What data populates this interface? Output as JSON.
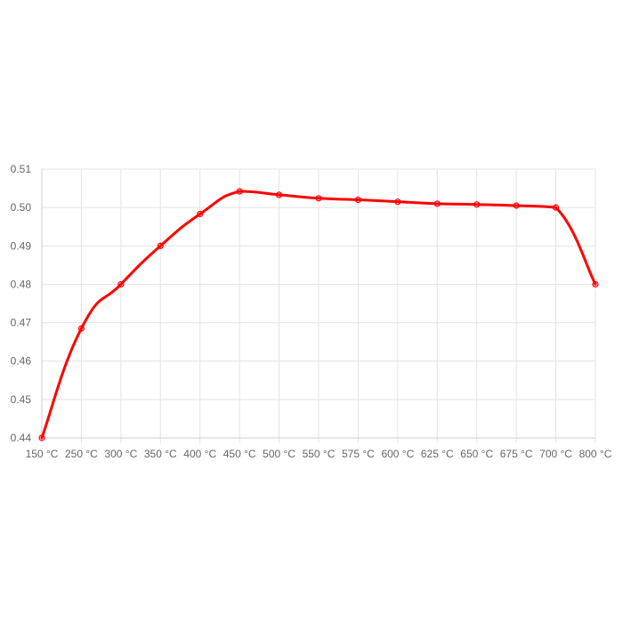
{
  "chart_data": {
    "type": "line",
    "title": "",
    "xlabel": "",
    "ylabel": "",
    "categories": [
      "150 °C",
      "250 °C",
      "300 °C",
      "350 °C",
      "400 °C",
      "450 °C",
      "500 °C",
      "550 °C",
      "575 °C",
      "600 °C",
      "625 °C",
      "650 °C",
      "675 °C",
      "700 °C",
      "800 °C"
    ],
    "series": [
      {
        "values": [
          0.44,
          0.4685,
          0.48,
          0.49,
          0.4983,
          0.5042,
          0.5033,
          0.5024,
          0.502,
          0.5015,
          0.501,
          0.5008,
          0.5005,
          0.5,
          0.48
        ],
        "color": "#ff0000"
      }
    ],
    "ylim": [
      0.44,
      0.51
    ],
    "yticks": [
      "0.51",
      "0.50",
      "0.49",
      "0.48",
      "0.47",
      "0.46",
      "0.45",
      "0.44"
    ],
    "grid": true,
    "legend": "none"
  }
}
